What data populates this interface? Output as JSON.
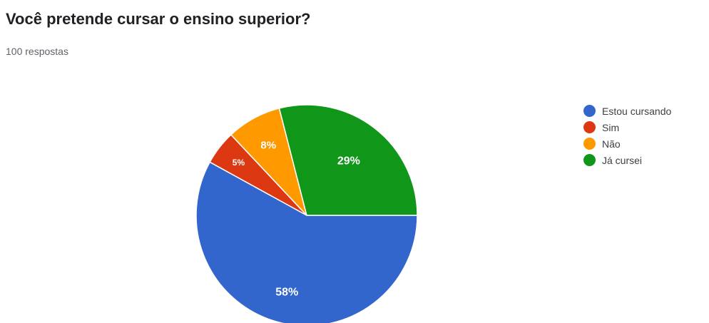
{
  "header": {
    "title": "Você pretende cursar o ensino superior?",
    "subtitle": "100 respostas"
  },
  "chart_data": {
    "type": "pie",
    "title": "Você pretende cursar o ensino superior?",
    "categories": [
      "Estou cursando",
      "Sim",
      "Não",
      "Já cursei"
    ],
    "values": [
      58,
      5,
      8,
      29
    ],
    "value_labels": [
      "58%",
      "5%",
      "8%",
      "29%"
    ],
    "colors": [
      "#3366cc",
      "#dc3912",
      "#ff9900",
      "#109618"
    ],
    "legend_position": "right"
  }
}
